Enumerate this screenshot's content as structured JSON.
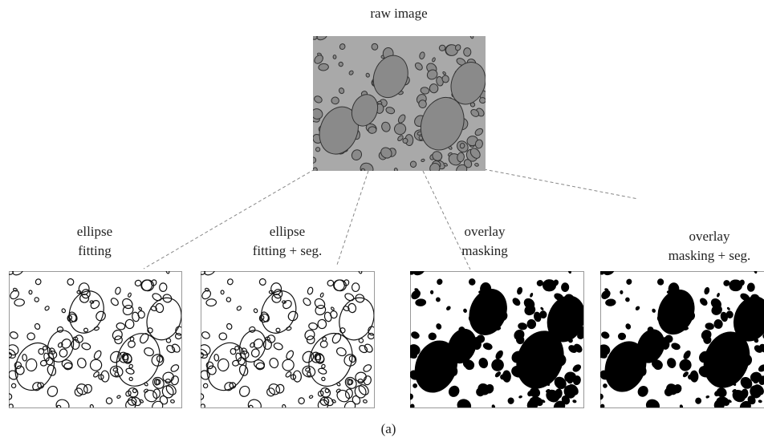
{
  "nodes": [
    {
      "label": [
        "raw image"
      ]
    },
    {
      "label": [
        "ellipse",
        "fitting"
      ]
    },
    {
      "label": [
        "ellipse",
        "fitting + seg."
      ]
    },
    {
      "label": [
        "overlay",
        "masking"
      ]
    },
    {
      "label": [
        "overlay",
        "masking + seg."
      ]
    }
  ],
  "caption": "(a)"
}
